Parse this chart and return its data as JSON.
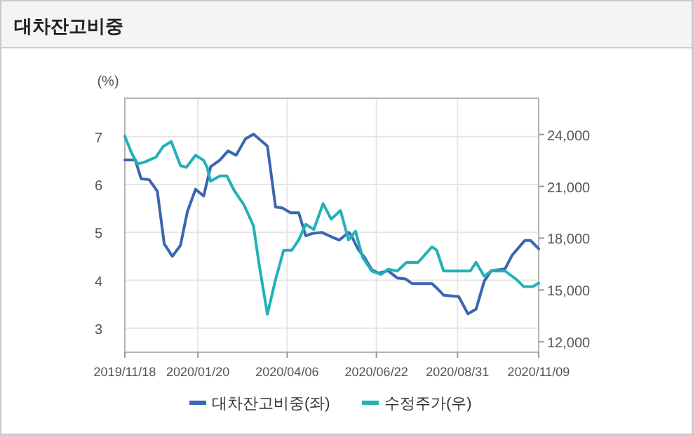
{
  "chart_data": {
    "type": "line",
    "title": "대차잔고비중",
    "ylabel": "(%)",
    "xlim": [
      "2019-11-18",
      "2020-11-09"
    ],
    "xticks": [
      {
        "value": "2019-11-18",
        "label": "2019/11/18"
      },
      {
        "value": "2020-01-20",
        "label": "2020/01/20"
      },
      {
        "value": "2020-04-06",
        "label": "2020/04/06"
      },
      {
        "value": "2020-06-22",
        "label": "2020/06/22"
      },
      {
        "value": "2020-08-31",
        "label": "2020/08/31"
      },
      {
        "value": "2020-11-09",
        "label": "2020/11/09"
      }
    ],
    "ylim": [
      2.5,
      7.8
    ],
    "yticks": [
      3,
      4,
      5,
      6,
      7
    ],
    "y2lim": [
      11400,
      26100
    ],
    "y2ticks": [
      {
        "value": 12000,
        "label": "12,000"
      },
      {
        "value": 15000,
        "label": "15,000"
      },
      {
        "value": 18000,
        "label": "18,000"
      },
      {
        "value": 21000,
        "label": "21,000"
      },
      {
        "value": 24000,
        "label": "24,000"
      }
    ],
    "grid": true,
    "legend": "bottom",
    "marker": "none",
    "line_style": "solid",
    "series": [
      {
        "name": "대차잔고비중(좌)",
        "color": "#3b66b0",
        "x": [
          "2019-11-18",
          "2019-11-27",
          "2019-12-02",
          "2019-12-09",
          "2019-12-16",
          "2019-12-22",
          "2019-12-29",
          "2020-01-05",
          "2020-01-11",
          "2020-01-18",
          "2020-01-25",
          "2020-01-31",
          "2020-02-08",
          "2020-02-15",
          "2020-02-22",
          "2020-03-01",
          "2020-03-08",
          "2020-03-20",
          "2020-03-27",
          "2020-04-02",
          "2020-04-09",
          "2020-04-16",
          "2020-04-22",
          "2020-04-28",
          "2020-05-06",
          "2020-05-15",
          "2020-05-21",
          "2020-05-29",
          "2020-05-31",
          "2020-06-06",
          "2020-06-12",
          "2020-06-18",
          "2020-06-24",
          "2020-07-02",
          "2020-07-10",
          "2020-07-17",
          "2020-07-23",
          "2020-08-09",
          "2020-08-13",
          "2020-08-19",
          "2020-09-01",
          "2020-09-09",
          "2020-09-16",
          "2020-09-23",
          "2020-09-29",
          "2020-10-11",
          "2020-10-17",
          "2020-10-23",
          "2020-10-28",
          "2020-11-02",
          "2020-11-09"
        ],
        "values": [
          6.51,
          6.51,
          6.12,
          6.1,
          5.86,
          4.76,
          4.5,
          4.73,
          5.44,
          5.9,
          5.76,
          6.37,
          6.51,
          6.7,
          6.61,
          6.95,
          7.05,
          6.8,
          5.53,
          5.51,
          5.41,
          5.41,
          4.93,
          4.98,
          5.0,
          4.9,
          4.84,
          5.0,
          4.95,
          4.66,
          4.47,
          4.22,
          4.15,
          4.2,
          4.05,
          4.03,
          3.93,
          3.93,
          3.84,
          3.69,
          3.66,
          3.3,
          3.4,
          3.98,
          4.2,
          4.24,
          4.52,
          4.69,
          4.83,
          4.83,
          4.66
        ]
      },
      {
        "name": "수정주가(우)",
        "color": "#22b1b8",
        "axis": "y2",
        "x": [
          "2019-11-18",
          "2019-11-24",
          "2019-11-29",
          "2019-12-05",
          "2019-12-15",
          "2019-12-21",
          "2019-12-28",
          "2020-01-05",
          "2020-01-10",
          "2020-01-18",
          "2020-01-25",
          "2020-01-28",
          "2020-01-31",
          "2020-02-08",
          "2020-02-14",
          "2020-02-20",
          "2020-02-29",
          "2020-03-08",
          "2020-03-13",
          "2020-03-20",
          "2020-03-27",
          "2020-04-03",
          "2020-04-10",
          "2020-04-16",
          "2020-04-22",
          "2020-04-29",
          "2020-05-07",
          "2020-05-14",
          "2020-05-22",
          "2020-05-29",
          "2020-06-04",
          "2020-06-10",
          "2020-06-18",
          "2020-06-26",
          "2020-07-02",
          "2020-07-10",
          "2020-07-18",
          "2020-07-28",
          "2020-08-09",
          "2020-08-13",
          "2020-08-19",
          "2020-09-11",
          "2020-09-16",
          "2020-09-23",
          "2020-09-29",
          "2020-10-11",
          "2020-10-21",
          "2020-10-27",
          "2020-11-04",
          "2020-11-09"
        ],
        "values": [
          23900,
          22900,
          22300,
          22400,
          22700,
          23300,
          23600,
          22200,
          22100,
          22800,
          22500,
          22100,
          21300,
          21600,
          21600,
          20800,
          19900,
          18700,
          16400,
          13600,
          15600,
          17300,
          17300,
          17900,
          18800,
          18500,
          20000,
          19100,
          19600,
          17900,
          18400,
          16900,
          16100,
          15900,
          16200,
          16100,
          16600,
          16600,
          17500,
          17300,
          16100,
          16100,
          16600,
          15800,
          16100,
          16100,
          15600,
          15200,
          15200,
          15400
        ]
      }
    ]
  }
}
